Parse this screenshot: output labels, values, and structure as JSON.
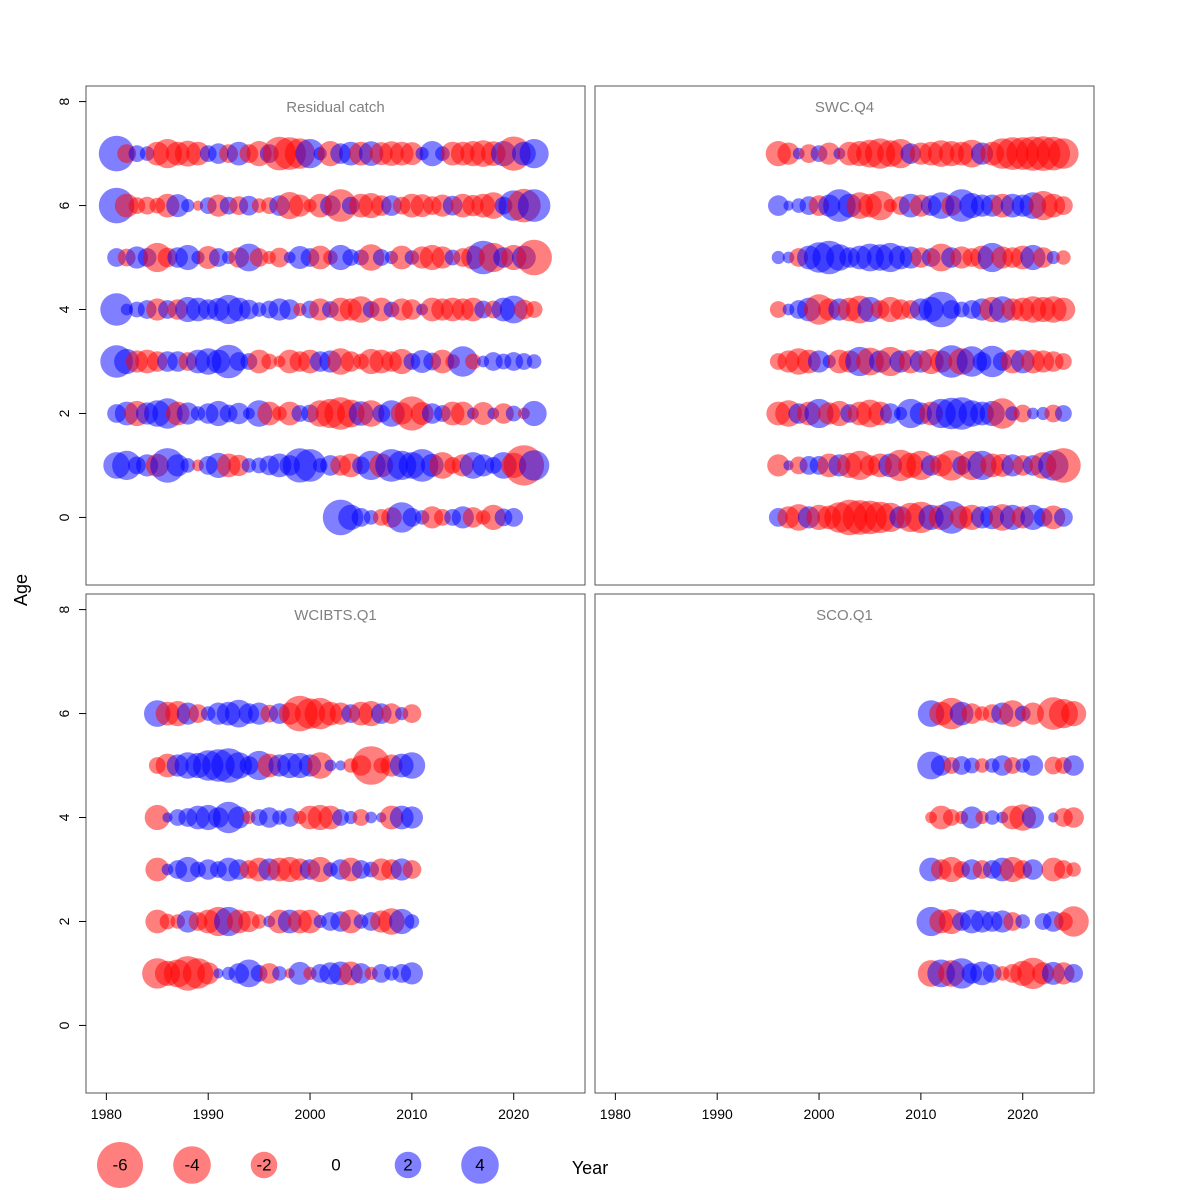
{
  "chart_data": {
    "type": "scatter",
    "description_kind": "bubble residual plot",
    "ylabel": "Age",
    "xlabel": "Year",
    "x_ticks": [
      1980,
      1990,
      2000,
      2010,
      2020
    ],
    "y_ticks": [
      0,
      2,
      4,
      6,
      8
    ],
    "xlim": [
      1978,
      2027
    ],
    "ylim": [
      -1.3,
      8.3
    ],
    "colors": {
      "negative": "#ff0000",
      "positive": "#0000ff",
      "frame": "#555555",
      "title": "#808080"
    },
    "legend": {
      "values": [
        -6,
        -4,
        -2,
        0,
        2,
        4
      ],
      "labels": [
        "-6",
        "-4",
        "-2",
        "0",
        "2",
        "4"
      ]
    },
    "panels": [
      {
        "title": "Residual catch",
        "ages": [
          0,
          1,
          2,
          3,
          4,
          5,
          6,
          7
        ],
        "year_start": [
          2003,
          1981,
          1981,
          1981,
          1981,
          1981,
          1981,
          1981
        ],
        "year_end": 2024,
        "residuals": [
          [
            3.6,
            1.8,
            1.0,
            0.6,
            -0.8,
            -1.2,
            2.6,
            1.0,
            0.6,
            -1.4,
            -0.8,
            0.8,
            1.4,
            -1.2,
            -0.6,
            -1.8,
            0.9,
            1.0
          ],
          [
            2.0,
            2.4,
            0.9,
            1.4,
            -1.5,
            3.4,
            1.4,
            0.6,
            -0.4,
            1.0,
            1.8,
            -1.6,
            -1.3,
            0.6,
            0.7,
            1.1,
            1.6,
            1.2,
            3.3,
            3.0,
            0.6,
            1.2,
            -1.2,
            -1.6,
            0.9,
            2.4,
            -1.6,
            3.0,
            2.4,
            2.0,
            3.0,
            1.5,
            -2.0,
            -0.8,
            -1.4,
            2.0,
            1.4,
            0.8,
            2.0,
            -1.8,
            -4.6,
            2.6
          ],
          [
            1.0,
            1.6,
            -1.8,
            1.4,
            2.0,
            2.6,
            -1.6,
            1.4,
            0.6,
            1.2,
            1.8,
            0.9,
            1.3,
            0.4,
            2.0,
            -1.6,
            -0.6,
            -1.6,
            0.8,
            0.9,
            -2.0,
            -2.4,
            -3.0,
            -2.2,
            1.7,
            -2.0,
            0.9,
            2.0,
            -1.4,
            -3.3,
            -1.5,
            1.2,
            0.8,
            -1.6,
            -1.6,
            0.4,
            -1.5,
            0.4,
            -1.2,
            0.7,
            -0.4,
            1.8
          ],
          [
            3.0,
            1.8,
            -1.4,
            -1.6,
            -1.2,
            1.2,
            1.2,
            -1.0,
            1.6,
            2.0,
            1.6,
            3.2,
            1.0,
            0.8,
            -1.6,
            -0.7,
            -0.4,
            -1.6,
            -1.2,
            -1.6,
            1.2,
            1.4,
            -2.0,
            -1.2,
            -0.7,
            -1.8,
            -1.6,
            -1.2,
            -1.8,
            0.8,
            1.5,
            0.9,
            -1.6,
            -0.6,
            2.6,
            -0.7,
            0.4,
            1.0,
            0.7,
            1.0,
            0.8,
            0.6
          ],
          [
            3.0,
            0.4,
            0.7,
            1.0,
            -1.4,
            1.0,
            -1.2,
            1.8,
            1.6,
            1.2,
            1.5,
            2.4,
            1.6,
            1.1,
            0.6,
            0.9,
            1.4,
            1.2,
            -0.5,
            0.9,
            -1.4,
            0.8,
            -1.6,
            -1.4,
            -2.0,
            0.8,
            -1.6,
            0.7,
            -1.4,
            -1.2,
            0.4,
            -1.6,
            -1.4,
            -1.6,
            -1.4,
            -1.6,
            0.9,
            -0.9,
            1.6,
            2.2,
            -1.1,
            -0.8
          ],
          [
            1.0,
            -0.9,
            1.4,
            1.0,
            -2.4,
            -1.1,
            1.2,
            1.8,
            0.5,
            -1.5,
            1.0,
            0.5,
            -1.2,
            2.2,
            -1.0,
            -0.5,
            -1.1,
            0.4,
            1.5,
            1.0,
            -1.6,
            -0.6,
            1.8,
            0.8,
            0.7,
            -2.0,
            0.8,
            0.5,
            -1.6,
            0.6,
            -1.4,
            -1.8,
            -1.4,
            0.7,
            -1.0,
            -1.6,
            3.2,
            -2.4,
            1.2,
            -1.8,
            1.6,
            -3.6
          ],
          [
            3.6,
            -1.6,
            -0.8,
            -0.9,
            -0.7,
            -1.6,
            1.5,
            0.5,
            -0.3,
            0.8,
            -1.4,
            0.9,
            -1.0,
            1.1,
            -0.6,
            -0.8,
            1.2,
            -2.1,
            -1.4,
            -0.5,
            -1.6,
            1.2,
            -3.0,
            0.9,
            -1.6,
            -1.8,
            -1.2,
            1.2,
            -0.9,
            -1.6,
            -1.5,
            -1.0,
            -1.4,
            1.1,
            -1.6,
            -1.3,
            -1.6,
            -2.0,
            0.9,
            2.6,
            -3.2,
            3.0
          ],
          [
            3.6,
            -1.0,
            0.8,
            0.6,
            -1.6,
            -2.4,
            -1.6,
            -1.9,
            -1.6,
            0.8,
            1.2,
            -1.0,
            1.6,
            -1.0,
            -1.8,
            1.0,
            -3.2,
            -3.0,
            -2.6,
            2.4,
            0.5,
            -1.8,
            1.2,
            1.6,
            -1.6,
            1.7,
            -1.5,
            -1.7,
            -1.6,
            -1.5,
            0.5,
            1.8,
            0.6,
            -1.6,
            -1.6,
            -1.8,
            -2.0,
            -1.7,
            1.8,
            -3.3,
            1.6,
            2.4
          ]
        ]
      },
      {
        "title": "SWC.Q4",
        "ages": [
          0,
          1,
          2,
          3,
          4,
          5,
          6,
          7
        ],
        "year_start": [
          1996,
          1996,
          1996,
          1996,
          1996,
          1996,
          1996,
          1996
        ],
        "year_end": 2024,
        "residuals": [
          [
            1.0,
            -1.4,
            -2.0,
            1.4,
            -1.8,
            -1.6,
            -2.6,
            -3.6,
            -3.4,
            -3.2,
            -2.8,
            -2.4,
            1.4,
            -2.4,
            -2.8,
            1.8,
            -1.8,
            3.0,
            -1.5,
            -1.8,
            1.4,
            1.6,
            -2.0,
            1.8,
            -1.4,
            1.8,
            1.0,
            -1.6,
            1.0
          ],
          [
            -1.4,
            0.3,
            -0.9,
            1.0,
            1.0,
            -1.6,
            1.4,
            -1.8,
            -2.4,
            -1.2,
            -1.6,
            1.6,
            -2.8,
            -1.8,
            -2.4,
            1.2,
            -1.4,
            -2.6,
            1.0,
            -2.4,
            2.4,
            -1.6,
            -1.5,
            1.4,
            -1.2,
            1.2,
            -2.0,
            2.6,
            -3.4
          ],
          [
            -1.6,
            -2.0,
            1.2,
            -1.6,
            2.4,
            -1.4,
            -1.8,
            1.0,
            -1.6,
            -2.2,
            -1.6,
            1.2,
            0.5,
            2.4,
            1.4,
            -1.6,
            2.4,
            2.8,
            3.0,
            2.0,
            1.6,
            1.8,
            -2.6,
            0.6,
            -0.9,
            0.4,
            0.5,
            -0.9,
            0.8
          ],
          [
            -0.8,
            -1.4,
            -2.0,
            -1.6,
            1.4,
            0.5,
            -1.6,
            -1.4,
            2.4,
            -2.2,
            1.4,
            -2.4,
            1.4,
            -1.6,
            1.4,
            -1.8,
            -1.4,
            3.0,
            -2.0,
            2.6,
            1.0,
            2.8,
            1.0,
            -1.6,
            1.6,
            -1.6,
            -1.4,
            -1.2,
            -0.8
          ],
          [
            -0.8,
            0.4,
            1.0,
            1.6,
            -2.6,
            -1.4,
            1.4,
            -1.6,
            -2.2,
            1.8,
            -1.0,
            -1.8,
            -1.2,
            -1.0,
            1.4,
            1.8,
            3.6,
            1.0,
            0.7,
            1.0,
            1.4,
            -1.8,
            2.0,
            -1.4,
            -1.6,
            -2.0,
            -1.8,
            -2.0,
            -1.6
          ],
          [
            0.5,
            0.4,
            -1.0,
            1.6,
            2.6,
            3.2,
            2.0,
            1.2,
            1.6,
            2.2,
            2.0,
            2.4,
            1.6,
            1.4,
            -1.2,
            1.0,
            -2.2,
            1.2,
            -1.4,
            -1.0,
            -1.6,
            2.4,
            -1.4,
            -1.2,
            -1.6,
            1.8,
            -1.2,
            0.5,
            -0.6
          ],
          [
            1.2,
            0.3,
            0.6,
            1.0,
            -1.2,
            1.4,
            3.0,
            1.6,
            -2.0,
            -1.6,
            -2.4,
            -0.5,
            -1.0,
            1.6,
            -1.4,
            1.2,
            2.0,
            -1.2,
            3.0,
            1.8,
            1.4,
            1.4,
            -1.6,
            1.6,
            1.4,
            2.0,
            -2.4,
            -1.6,
            -1.0
          ],
          [
            -1.8,
            -1.4,
            0.4,
            -1.0,
            0.8,
            -1.4,
            0.4,
            -1.6,
            -1.8,
            -2.2,
            -2.6,
            -2.0,
            -2.4,
            1.2,
            -1.4,
            -1.6,
            -2.0,
            -1.8,
            -1.6,
            -2.2,
            1.4,
            -1.6,
            -2.6,
            -3.0,
            -3.0,
            -3.3,
            -3.4,
            -3.2,
            -2.6
          ]
        ]
      },
      {
        "title": "WCIBTS.Q1",
        "ages": [
          1,
          2,
          3,
          4,
          5,
          6
        ],
        "year_start": [
          1985,
          1985,
          1985,
          1985,
          1985,
          1985
        ],
        "year_end": 2010,
        "residuals": [
          [
            -2.6,
            -1.8,
            -2.2,
            -3.4,
            -2.6,
            -1.4,
            0.3,
            0.5,
            1.2,
            2.2,
            0.8,
            -1.2,
            0.6,
            -0.3,
            1.5,
            -0.5,
            1.0,
            1.4,
            1.6,
            -1.6,
            1.2,
            -0.5,
            1.0,
            0.6,
            1.0,
            1.4
          ],
          [
            -1.6,
            -0.7,
            -0.6,
            1.4,
            -1.0,
            -1.6,
            -2.4,
            2.4,
            -1.6,
            -1.3,
            -0.6,
            0.4,
            -1.6,
            1.6,
            -1.6,
            -1.6,
            0.5,
            1.0,
            1.2,
            -1.6,
            0.6,
            1.0,
            -1.4,
            -2.0,
            1.8,
            0.6
          ],
          [
            -1.6,
            0.4,
            1.0,
            1.8,
            0.7,
            1.2,
            0.8,
            1.6,
            1.2,
            -1.0,
            -1.6,
            1.4,
            -1.6,
            -1.8,
            -1.4,
            1.2,
            -1.8,
            0.6,
            1.2,
            -1.6,
            1.0,
            0.7,
            -1.4,
            -1.2,
            1.4,
            -1.0
          ],
          [
            -1.8,
            0.3,
            0.8,
            1.0,
            1.6,
            1.8,
            1.2,
            2.8,
            1.4,
            -0.5,
            0.8,
            1.2,
            0.6,
            1.0,
            -0.5,
            -1.6,
            -1.8,
            -1.6,
            0.8,
            0.5,
            -0.8,
            0.4,
            0.3,
            -1.6,
            1.6,
            1.4
          ],
          [
            -0.8,
            -1.6,
            1.4,
            2.0,
            1.8,
            2.6,
            3.0,
            3.4,
            2.0,
            1.0,
            2.4,
            -1.6,
            1.4,
            1.8,
            1.8,
            1.4,
            -2.0,
            0.4,
            0.3,
            -0.6,
            -1.2,
            -4.2,
            -0.7,
            -1.4,
            1.6,
            2.0
          ],
          [
            2.0,
            -1.6,
            -1.8,
            1.4,
            -1.0,
            0.6,
            1.4,
            1.6,
            2.2,
            1.2,
            1.4,
            -0.9,
            1.2,
            -1.4,
            -3.6,
            -2.6,
            -2.8,
            -1.6,
            -1.4,
            1.0,
            -1.6,
            -1.8,
            1.2,
            -1.2,
            0.5,
            -1.0
          ]
        ]
      },
      {
        "title": "SCO.Q1",
        "ages": [
          1,
          2,
          3,
          4,
          5,
          6
        ],
        "year_start": [
          2011,
          2011,
          2011,
          2011,
          2011,
          2011
        ],
        "year_end": 2025,
        "residuals": [
          [
            -2.0,
            2.2,
            -2.0,
            2.6,
            1.2,
            1.6,
            1.0,
            -0.6,
            -1.0,
            -1.8,
            -2.8,
            -1.4,
            1.5,
            -1.4,
            1.0
          ],
          [
            2.4,
            -1.6,
            -1.8,
            1.0,
            1.6,
            1.4,
            1.2,
            1.4,
            -1.0,
            0.6,
            null,
            0.8,
            1.2,
            -1.0,
            -2.6
          ],
          [
            1.6,
            -1.2,
            -1.8,
            -0.8,
            1.2,
            -1.0,
            1.0,
            1.6,
            -1.8,
            -1.0,
            1.2,
            null,
            -1.6,
            -1.0,
            -0.6
          ],
          [
            -0.4,
            -1.6,
            -0.8,
            -0.5,
            1.4,
            -0.5,
            0.6,
            0.4,
            -1.6,
            -2.0,
            1.4,
            null,
            0.3,
            -1.0,
            -1.2
          ],
          [
            2.2,
            1.2,
            -0.8,
            1.0,
            0.7,
            -0.6,
            0.6,
            1.2,
            -0.8,
            0.6,
            1.2,
            null,
            -0.9,
            -0.8,
            1.2
          ],
          [
            2.0,
            -1.6,
            -2.8,
            1.6,
            -1.2,
            -0.6,
            -1.0,
            1.4,
            -2.0,
            0.7,
            -1.4,
            null,
            -3.0,
            -2.4,
            -1.8
          ]
        ]
      }
    ]
  }
}
